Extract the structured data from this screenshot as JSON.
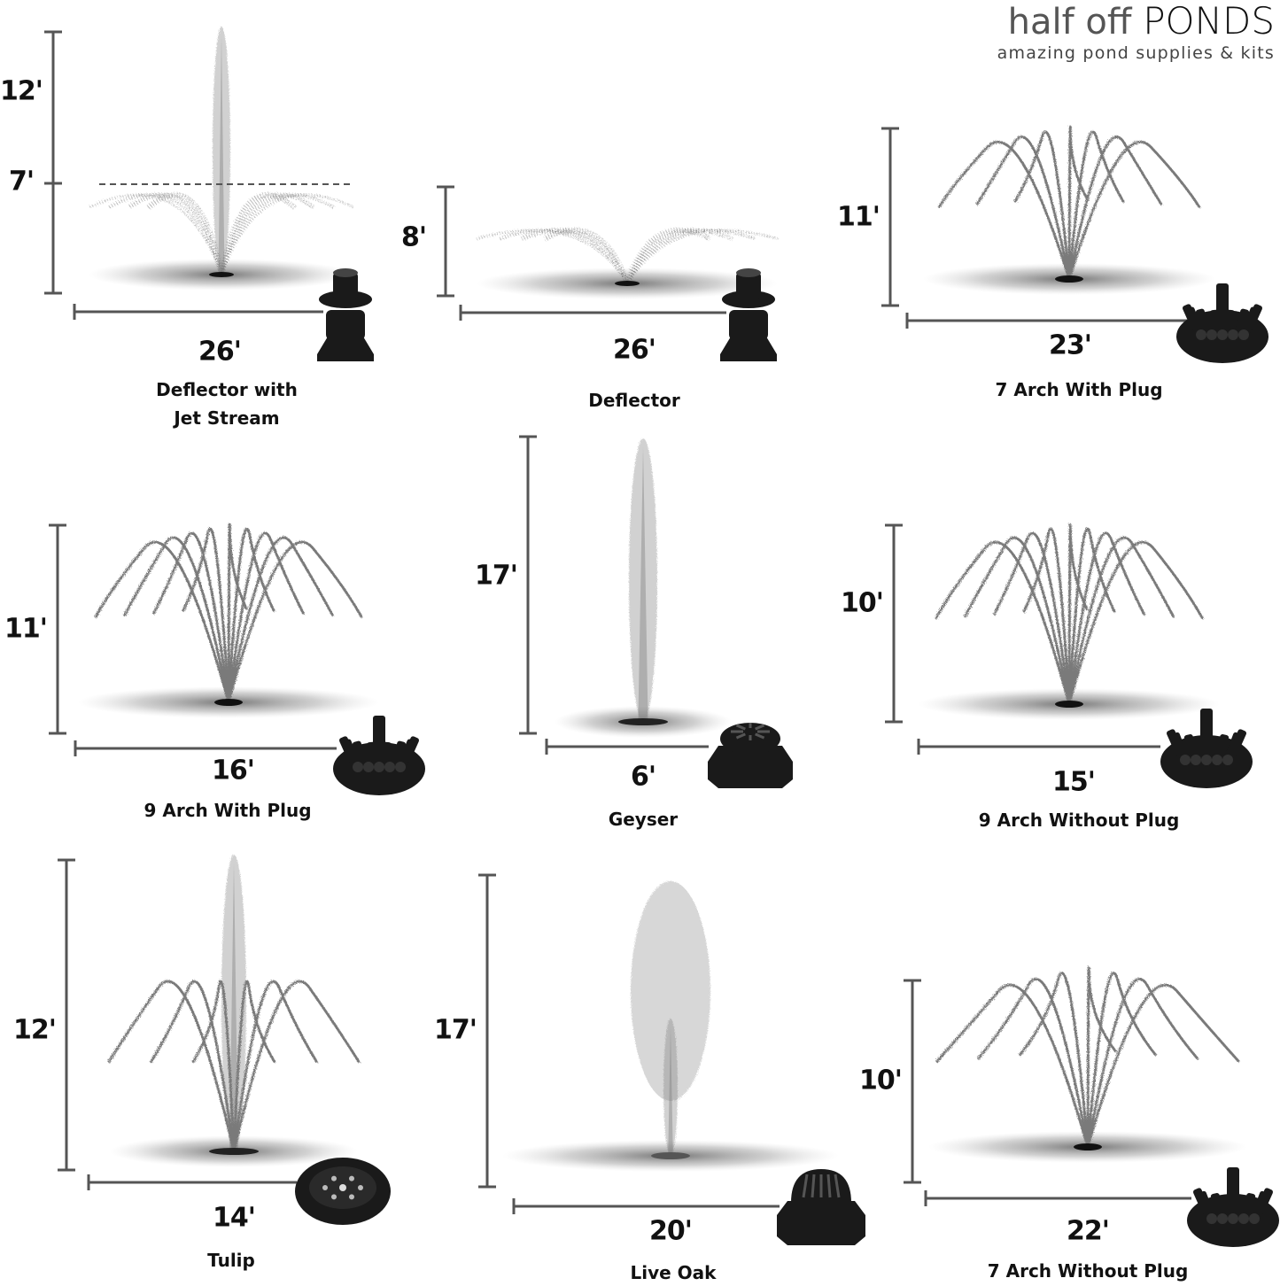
{
  "logo": {
    "brand_light": "half off ",
    "brand_bold": "PONDS",
    "tagline": "amazing pond supplies & kits"
  },
  "colors": {
    "dimension_line": "#555555",
    "spray": "#7a7a7a",
    "nozzle": "#1a1a1a"
  },
  "fountains": [
    {
      "name": "Deflector with\nJet Stream",
      "height": "12'",
      "secondary_height": "7'",
      "width": "26'",
      "pattern": "deflector-jet",
      "nozzle": "deflector-nozzle"
    },
    {
      "name": "Deflector",
      "height": "8'",
      "width": "26'",
      "pattern": "deflector",
      "nozzle": "deflector-nozzle"
    },
    {
      "name": "7 Arch With Plug",
      "height": "11'",
      "width": "23'",
      "pattern": "arch-7",
      "nozzle": "arch-plug-nozzle"
    },
    {
      "name": "9 Arch With Plug",
      "height": "11'",
      "width": "16'",
      "pattern": "arch-9",
      "nozzle": "arch-plug-nozzle"
    },
    {
      "name": "Geyser",
      "height": "17'",
      "width": "6'",
      "pattern": "geyser",
      "nozzle": "geyser-nozzle"
    },
    {
      "name": "9 Arch Without Plug",
      "height": "10'",
      "width": "15'",
      "pattern": "arch-9",
      "nozzle": "arch-nozzle"
    },
    {
      "name": "Tulip",
      "height": "12'",
      "width": "14'",
      "pattern": "tulip",
      "nozzle": "tulip-disk-nozzle"
    },
    {
      "name": "Live Oak",
      "height": "17'",
      "width": "20'",
      "pattern": "live-oak",
      "nozzle": "live-oak-nozzle"
    },
    {
      "name": "7 Arch Without Plug",
      "height": "10'",
      "width": "22'",
      "pattern": "arch-7-wide",
      "nozzle": "arch-nozzle"
    }
  ]
}
